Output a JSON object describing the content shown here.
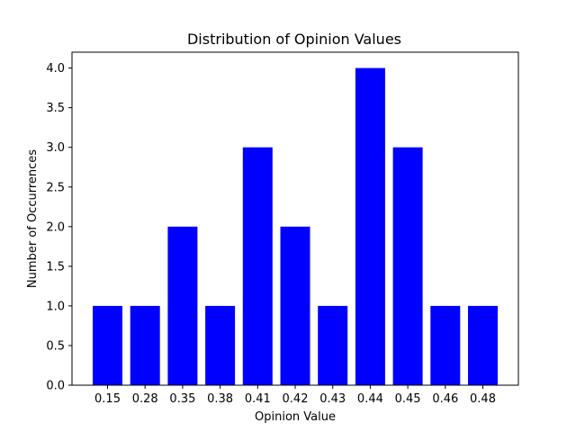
{
  "chart_data": {
    "type": "bar",
    "title": "Distribution of Opinion Values",
    "xlabel": "Opinion Value",
    "ylabel": "Number of Occurrences",
    "categories": [
      "0.15",
      "0.28",
      "0.35",
      "0.38",
      "0.41",
      "0.42",
      "0.43",
      "0.44",
      "0.45",
      "0.46",
      "0.48"
    ],
    "values": [
      1,
      1,
      2,
      1,
      3,
      2,
      1,
      4,
      3,
      1,
      1
    ],
    "ylim": [
      0,
      4.2
    ],
    "yticks": [
      "0.0",
      "0.5",
      "1.0",
      "1.5",
      "2.0",
      "2.5",
      "3.0",
      "3.5",
      "4.0"
    ],
    "bar_color": "#0000ff",
    "grid": false,
    "legend": "none"
  }
}
